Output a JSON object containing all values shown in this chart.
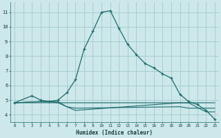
{
  "xlabel": "Humidex (Indice chaleur)",
  "bg_color": "#cce8ea",
  "grid_color": "#aaccce",
  "line_color": "#1a6b6b",
  "xlim": [
    -0.5,
    23.5
  ],
  "ylim": [
    3.5,
    11.7
  ],
  "xticks": [
    0,
    1,
    2,
    3,
    4,
    5,
    6,
    7,
    8,
    9,
    10,
    11,
    12,
    13,
    14,
    15,
    16,
    17,
    18,
    19,
    20,
    21,
    22,
    23
  ],
  "yticks": [
    4,
    5,
    6,
    7,
    8,
    9,
    10,
    11
  ],
  "main_x": [
    0,
    2,
    3,
    4,
    5,
    6,
    7,
    8,
    9,
    10,
    11,
    12,
    13,
    14,
    15,
    16,
    17,
    18,
    19,
    20,
    21,
    22,
    23
  ],
  "main_y": [
    4.82,
    5.3,
    5.0,
    4.9,
    5.0,
    5.5,
    6.4,
    8.5,
    9.7,
    11.0,
    11.1,
    9.9,
    8.8,
    8.1,
    7.5,
    7.2,
    6.8,
    6.5,
    5.4,
    4.9,
    4.7,
    4.3,
    3.7
  ],
  "line2_x": [
    0,
    3,
    4,
    5,
    6,
    7,
    19,
    20,
    21,
    22,
    23
  ],
  "line2_y": [
    4.82,
    4.9,
    4.9,
    4.9,
    4.55,
    4.3,
    4.82,
    4.82,
    4.82,
    4.82,
    4.82
  ],
  "line3_x": [
    0,
    6,
    7,
    19,
    20,
    21,
    22,
    23
  ],
  "line3_y": [
    4.82,
    4.82,
    4.82,
    4.82,
    4.82,
    4.5,
    4.2,
    4.2
  ],
  "line4_x": [
    0,
    3,
    4,
    5,
    6,
    7,
    19,
    20,
    23
  ],
  "line4_y": [
    4.82,
    4.9,
    4.9,
    4.82,
    4.55,
    4.45,
    4.55,
    4.45,
    4.45
  ]
}
